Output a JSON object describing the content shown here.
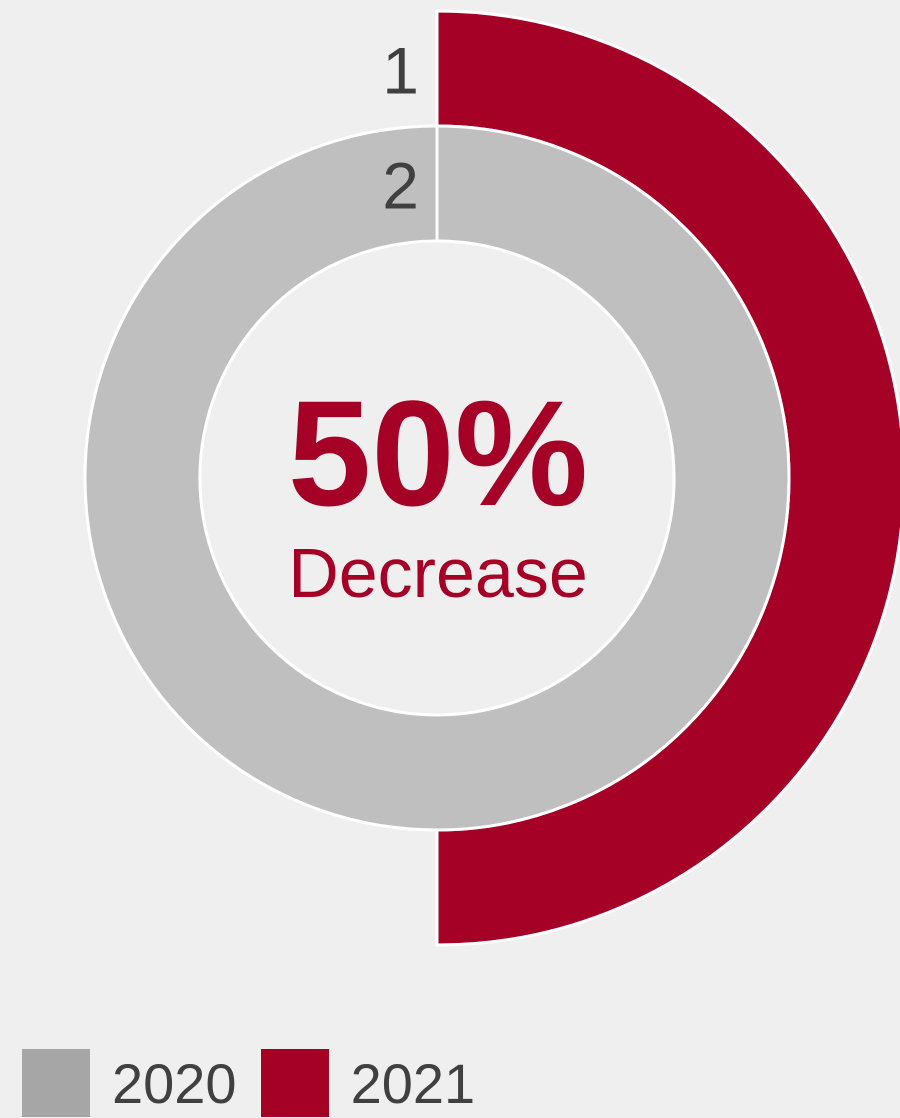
{
  "chart_data": {
    "type": "pie",
    "subtype": "nested-donut",
    "rings": [
      {
        "label": "1",
        "series": "2021",
        "value": 50,
        "color": "#a50026"
      },
      {
        "label": "2",
        "series": "2020",
        "value": 100,
        "color": "#bfbfbf"
      }
    ],
    "center_value": "50%",
    "center_label": "Decrease",
    "legend": [
      {
        "name": "2020",
        "color": "#a6a6a6"
      },
      {
        "name": "2021",
        "color": "#a50026"
      }
    ],
    "legend_position": "bottom-left"
  }
}
